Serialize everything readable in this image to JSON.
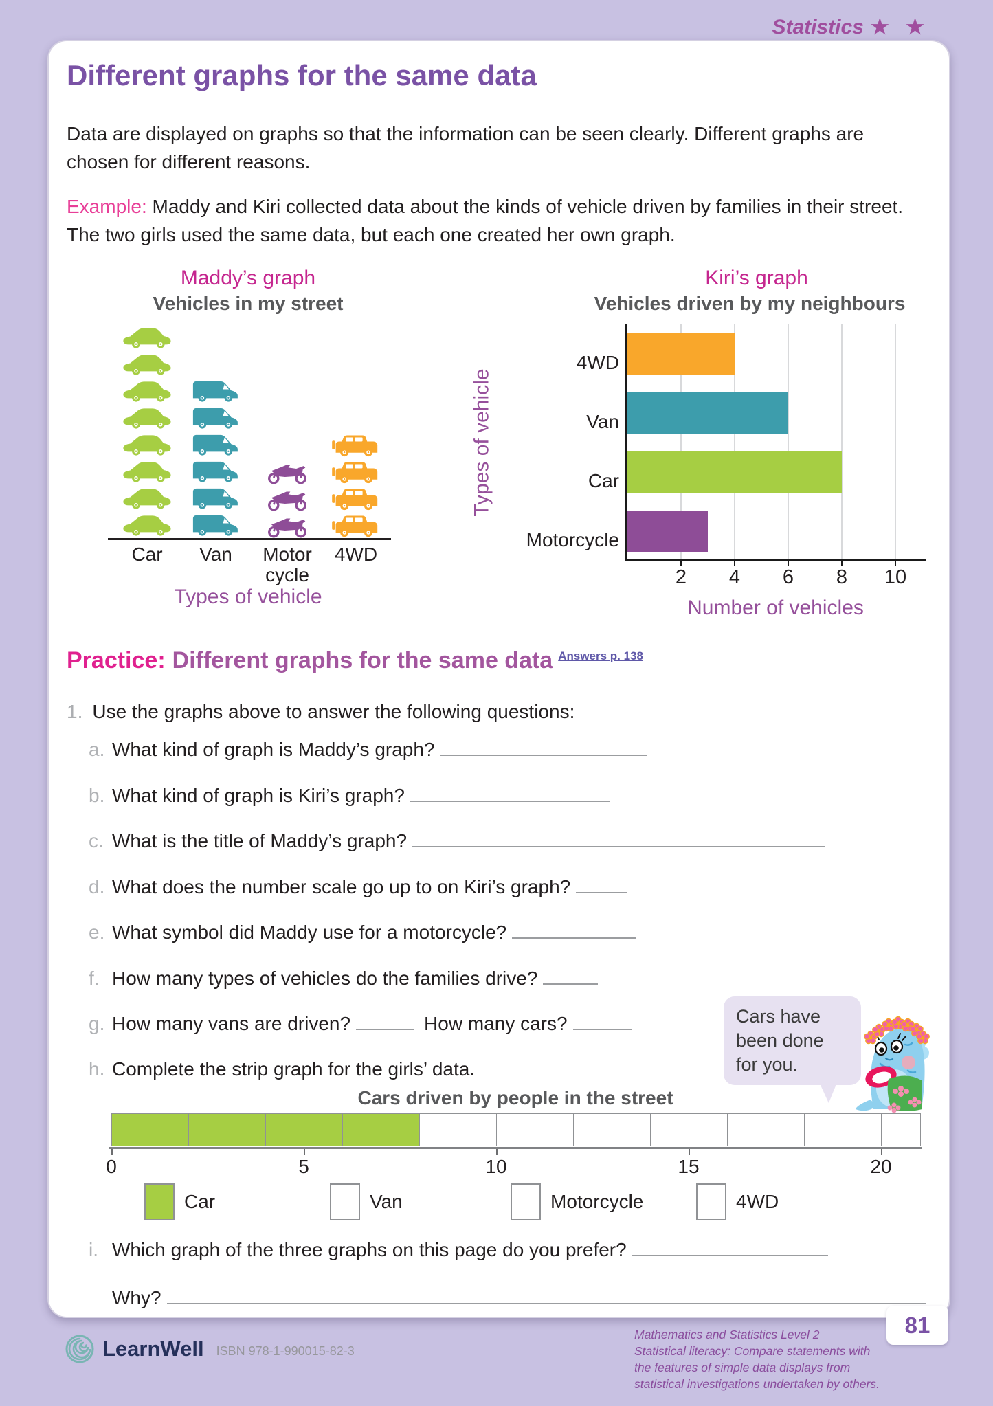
{
  "header": {
    "topic": "Statistics",
    "stars": "★ ★"
  },
  "title": "Different graphs for the same data",
  "intro": "Data are displayed on graphs so that the information can be seen clearly. Different graphs are chosen for different reasons.",
  "example": {
    "label": "Example:",
    "text": "Maddy and Kiri collected data about the kinds of vehicle driven by families in their street. The two girls used the same data, but each one created her own graph."
  },
  "chart_data": [
    {
      "type": "pictograph",
      "name": "Maddy’s graph",
      "title": "Vehicles in my street",
      "xlabel": "Types of vehicle",
      "categories": [
        "Car",
        "Van",
        "Motor cycle",
        "4WD"
      ],
      "values": [
        8,
        6,
        3,
        4
      ],
      "icons": [
        "car",
        "van",
        "motorcycle",
        "4wd"
      ],
      "colors": [
        "#A6CE43",
        "#3D9DAC",
        "#8E4D97",
        "#F9A72B"
      ]
    },
    {
      "type": "bar",
      "orientation": "horizontal",
      "name": "Kiri’s graph",
      "title": "Vehicles driven by my neighbours",
      "ylabel": "Types of vehicle",
      "xlabel": "Number of vehicles",
      "categories": [
        "4WD",
        "Van",
        "Car",
        "Motorcycle"
      ],
      "values": [
        4,
        6,
        8,
        3
      ],
      "colors": [
        "#F9A72B",
        "#3D9DAC",
        "#A6CE43",
        "#8E4D97"
      ],
      "xlim": [
        0,
        11
      ],
      "xticks": [
        2,
        4,
        6,
        8,
        10
      ],
      "grid": true
    },
    {
      "type": "strip",
      "title": "Cars driven by people in the street",
      "total_cells": 21,
      "filled_cells": 8,
      "fill_color": "#A6CE43",
      "xticks": [
        0,
        5,
        10,
        15,
        20
      ],
      "legend": [
        {
          "label": "Car",
          "filled": true
        },
        {
          "label": "Van",
          "filled": false
        },
        {
          "label": "Motorcycle",
          "filled": false
        },
        {
          "label": "4WD",
          "filled": false
        }
      ]
    }
  ],
  "practice": {
    "label": "Practice:",
    "heading": "Different graphs for the same data",
    "answers_link": "Answers p. 138",
    "q1_number": "1.",
    "q1_text": "Use the graphs above to answer the following questions:"
  },
  "questions": [
    {
      "letter": "a.",
      "text": "What kind of graph is Maddy’s graph?",
      "blank_w": 300
    },
    {
      "letter": "b.",
      "text": "What kind of graph is Kiri’s graph?",
      "blank_w": 290
    },
    {
      "letter": "c.",
      "text": "What is the title of Maddy’s graph?",
      "blank_w": 600
    },
    {
      "letter": "d.",
      "text": "What does the number scale go up to on Kiri’s graph?",
      "blank_w": 75
    },
    {
      "letter": "e.",
      "text": "What symbol did Maddy use for a motorcycle?",
      "blank_w": 180
    },
    {
      "letter": "f.",
      "text": "How many types of vehicles do the families drive?",
      "blank_w": 80
    },
    {
      "letter": "g.",
      "text": "How many vans are driven?",
      "blank_w": 85,
      "text2": "How many cars?",
      "blank2_w": 85
    },
    {
      "letter": "h.",
      "text": "Complete the strip graph for the girls’ data.",
      "blank_w": 0
    }
  ],
  "question_i": {
    "letter": "i.",
    "text": "Which graph of the three graphs on this page do you prefer?",
    "blank_w": 285,
    "why_label": "Why?",
    "why_blank_w": 1105
  },
  "bubble": {
    "text": "Cars have been done for you."
  },
  "footer": {
    "brand": "LearnWell",
    "isbn": "ISBN 978-1-990015-82-3",
    "series": "Mathematics and Statistics Level 2",
    "descriptor": "Statistical literacy: Compare statements with the features of simple data displays from statistical investigations undertaken by others.",
    "page_number": "81"
  }
}
